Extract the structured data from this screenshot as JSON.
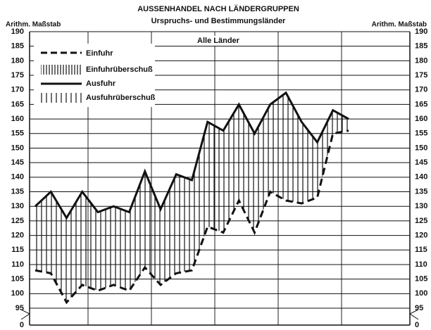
{
  "chart_data": {
    "type": "line",
    "title": "AUSSENHANDEL NACH LÄNDERGRUPPEN",
    "subtitle": "Urspruchs- und Bestimmungsländer",
    "y_label": "Arithm. Maßstab",
    "y2_label": "Arithm. Maßstab",
    "panel_label": "Alle Länder",
    "surplus_labels": [
      "Einfuhrüberschuß",
      "Ausfuhrüberschuß"
    ],
    "categories": [
      null,
      null,
      null,
      null,
      null,
      null,
      null,
      null,
      null,
      null,
      null,
      null,
      null,
      null,
      null,
      null,
      null,
      null,
      null,
      null,
      null
    ],
    "series": [
      {
        "name": "Einfuhr",
        "color": "#111111",
        "dashed": true,
        "values": [
          108,
          107,
          97,
          103,
          101,
          103,
          101,
          109,
          103,
          107,
          108,
          123,
          121,
          132,
          121,
          135,
          132,
          131,
          133,
          155,
          156
        ]
      },
      {
        "name": "Ausfuhr",
        "color": "#111111",
        "dashed": false,
        "values": [
          130,
          135,
          126,
          135,
          128,
          130,
          128,
          142,
          129,
          141,
          139,
          159,
          156,
          165,
          155,
          165,
          169,
          159,
          152,
          163,
          160
        ]
      }
    ],
    "ylim": [
      95,
      190
    ],
    "yticks": [
      0,
      95,
      100,
      105,
      110,
      115,
      120,
      125,
      130,
      135,
      140,
      145,
      150,
      155,
      160,
      165,
      170,
      175,
      180,
      185,
      190
    ],
    "axis_break": true,
    "grid": true,
    "legend": "upper left"
  }
}
